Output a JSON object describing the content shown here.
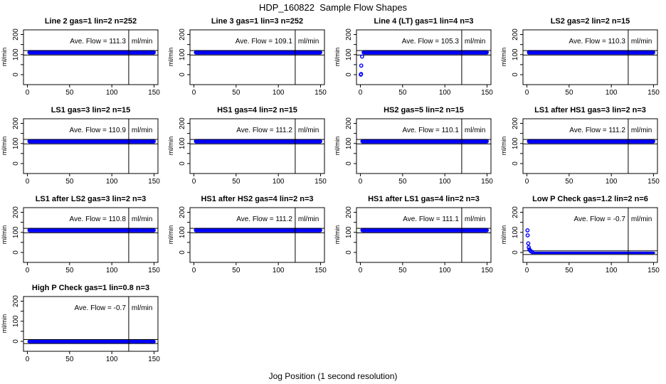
{
  "figure": {
    "title": "HDP_160822  Sample Flow Shapes",
    "xlabel": "Jog Position (1 second resolution)",
    "ylabel": "ml/min",
    "ave_label_prefix": "Ave. Flow =",
    "unit": "ml/min",
    "marker_color": "#0000FF",
    "axis_color": "#000000",
    "x_ticks_labeled": [
      0,
      50,
      100,
      150
    ],
    "y_ticks_labeled": [
      0,
      100,
      200
    ],
    "y_ticks_minor": [
      50,
      150
    ],
    "vline_x": 120
  },
  "chart_data": {
    "type": "scatter",
    "x_range": [
      -5,
      155
    ],
    "y_range": [
      -55,
      220
    ],
    "panels": [
      {
        "title": "Line 2 gas=1 lin=2 n=252",
        "ave_flow": "111.3",
        "band": {
          "x": [
            0,
            152
          ],
          "y": [
            100,
            122
          ]
        },
        "ref_lines": [
          120,
          98
        ],
        "points": []
      },
      {
        "title": "Line 3 gas=1 lin=3 n=252",
        "ave_flow": "109.1",
        "band": {
          "x": [
            0,
            152
          ],
          "y": [
            100,
            122
          ]
        },
        "ref_lines": [
          120,
          98
        ],
        "points": []
      },
      {
        "title": "Line 4 (LT) gas=1 lin=4 n=3",
        "ave_flow": "105.3",
        "band": {
          "x": [
            1.5,
            152
          ],
          "y": [
            100,
            122
          ]
        },
        "ref_lines": [
          120,
          98
        ],
        "points": [
          [
            0.5,
            0
          ],
          [
            0.8,
            3
          ],
          [
            1,
            45
          ],
          [
            2,
            90
          ]
        ]
      },
      {
        "title": "LS2 gas=2 lin=2 n=15",
        "ave_flow": "110.3",
        "band": {
          "x": [
            0,
            152
          ],
          "y": [
            100,
            122
          ]
        },
        "ref_lines": [
          120,
          98
        ],
        "points": []
      },
      {
        "title": "LS1 gas=3 lin=2 n=15",
        "ave_flow": "110.9",
        "band": {
          "x": [
            0,
            152
          ],
          "y": [
            100,
            122
          ]
        },
        "ref_lines": [
          120,
          98
        ],
        "points": []
      },
      {
        "title": "HS1 gas=4 lin=2 n=15",
        "ave_flow": "111.2",
        "band": {
          "x": [
            0,
            152
          ],
          "y": [
            100,
            122
          ]
        },
        "ref_lines": [
          120,
          98
        ],
        "points": []
      },
      {
        "title": "HS2 gas=5 lin=2 n=15",
        "ave_flow": "110.1",
        "band": {
          "x": [
            0,
            152
          ],
          "y": [
            100,
            122
          ]
        },
        "ref_lines": [
          120,
          98
        ],
        "points": []
      },
      {
        "title": "LS1 after HS1 gas=3 lin=2 n=3",
        "ave_flow": "111.2",
        "band": {
          "x": [
            0,
            152
          ],
          "y": [
            100,
            122
          ]
        },
        "ref_lines": [
          120,
          98
        ],
        "points": []
      },
      {
        "title": "LS1 after LS2 gas=3 lin=2 n=3",
        "ave_flow": "110.8",
        "band": {
          "x": [
            0,
            152
          ],
          "y": [
            100,
            122
          ]
        },
        "ref_lines": [
          120,
          98
        ],
        "points": []
      },
      {
        "title": "HS1 after HS2 gas=4 lin=2 n=3",
        "ave_flow": "111.2",
        "band": {
          "x": [
            0,
            152
          ],
          "y": [
            100,
            122
          ]
        },
        "ref_lines": [
          120,
          98
        ],
        "points": []
      },
      {
        "title": "HS1 after LS1 gas=4 lin=2 n=3",
        "ave_flow": "111.1",
        "band": {
          "x": [
            0,
            152
          ],
          "y": [
            100,
            122
          ]
        },
        "ref_lines": [
          120,
          98
        ],
        "points": []
      },
      {
        "title": "Low P Check gas=1.2 lin=2 n=6",
        "ave_flow": "-0.7",
        "band": {
          "x": [
            6,
            152
          ],
          "y": [
            -8,
            4
          ]
        },
        "ref_lines": [
          8,
          -10
        ],
        "points": [
          [
            0.7,
            110
          ],
          [
            0.9,
            85
          ],
          [
            1.6,
            45
          ],
          [
            2.2,
            25
          ],
          [
            3,
            15
          ],
          [
            4,
            9
          ],
          [
            5,
            5
          ],
          [
            6.5,
            2
          ]
        ]
      },
      {
        "title": "High P Check gas=1 lin=0.8 n=3",
        "ave_flow": "-0.7",
        "band": {
          "x": [
            0,
            152
          ],
          "y": [
            -10,
            8
          ]
        },
        "ref_lines": [
          9,
          -11
        ],
        "points": []
      }
    ]
  }
}
